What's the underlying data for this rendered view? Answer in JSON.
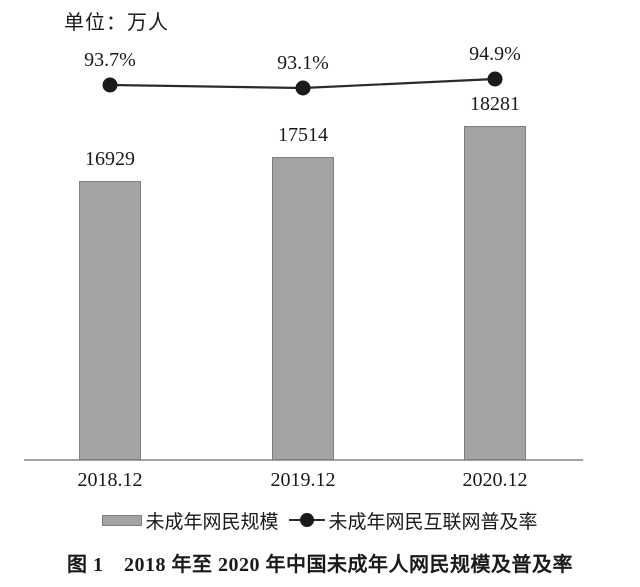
{
  "page": {
    "background": "#ffffff"
  },
  "chart_data": {
    "type": "bar",
    "subtype": "bar+line combo",
    "unit_label": "单位：万人",
    "categories": [
      "2018.12",
      "2019.12",
      "2020.12"
    ],
    "series": [
      {
        "name": "未成年网民规模",
        "type": "bar",
        "values": [
          16929,
          17514,
          18281
        ],
        "value_labels": [
          "16929",
          "17514",
          "18281"
        ]
      },
      {
        "name": "未成年网民互联网普及率",
        "type": "line",
        "values": [
          93.7,
          93.1,
          94.9
        ],
        "value_labels": [
          "93.7%",
          "93.1%",
          "94.9%"
        ]
      }
    ],
    "legend": [
      "未成年网民规模",
      "未成年网民互联网普及率"
    ],
    "legend_position": "bottom",
    "grid": false,
    "ylim_bar": [
      10000,
      18281
    ],
    "ylim_line": [
      93.1,
      94.9
    ],
    "caption": "图 1　2018 年至 2020 年中国未成年人网民规模及普及率",
    "colors": {
      "bar_fill": "#a3a3a3",
      "bar_border": "#7f7f7f",
      "line": "#2b2b2b",
      "dot": "#1a1a1a",
      "axis": "#a3a3a3",
      "text": "#1a1a1a"
    }
  }
}
